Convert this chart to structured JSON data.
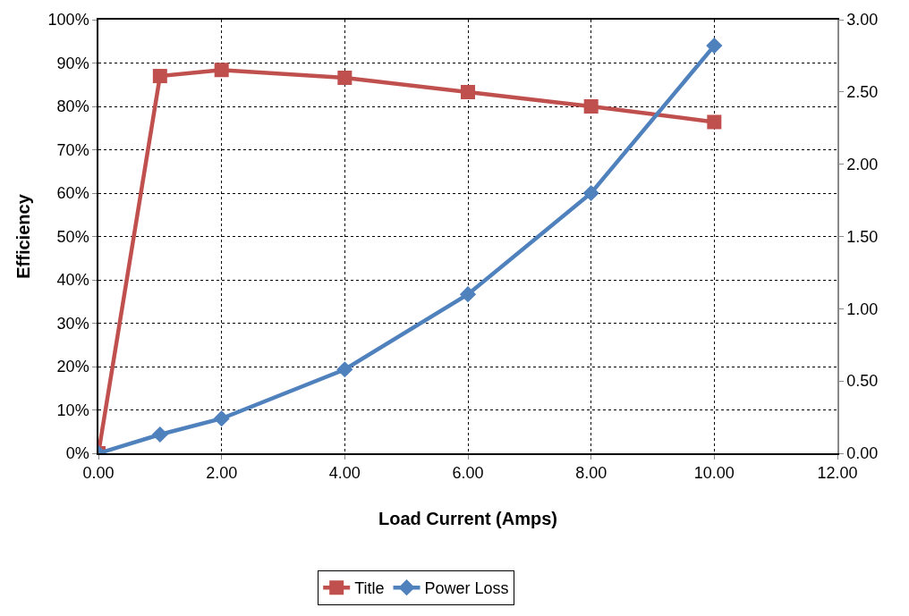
{
  "chart_data": {
    "type": "line",
    "xlabel": "Load Current (Amps)",
    "ylabel": "Efficiency",
    "x": [
      0,
      1,
      2,
      4,
      6,
      8,
      10
    ],
    "series": [
      {
        "name": "Title",
        "color": "#c0504d",
        "marker": "square",
        "values": [
          0,
          87,
          88.4,
          86.6,
          83.3,
          80,
          76.4
        ]
      },
      {
        "name": "Power Loss",
        "color": "#4f81bd",
        "marker": "diamond",
        "axis": "y2",
        "values": [
          0,
          0.13,
          0.24,
          0.58,
          1.1,
          1.8,
          2.82
        ]
      }
    ],
    "xlim": [
      0,
      12
    ],
    "xticks": [
      {
        "value": 0,
        "label": "0.00"
      },
      {
        "value": 2,
        "label": "2.00"
      },
      {
        "value": 4,
        "label": "4.00"
      },
      {
        "value": 6,
        "label": "6.00"
      },
      {
        "value": 8,
        "label": "8.00"
      },
      {
        "value": 10,
        "label": "10.00"
      },
      {
        "value": 12,
        "label": "12.00"
      }
    ],
    "ylim": [
      0,
      100
    ],
    "yticks": [
      {
        "value": 0,
        "label": "0%"
      },
      {
        "value": 10,
        "label": "10%"
      },
      {
        "value": 20,
        "label": "20%"
      },
      {
        "value": 30,
        "label": "30%"
      },
      {
        "value": 40,
        "label": "40%"
      },
      {
        "value": 50,
        "label": "50%"
      },
      {
        "value": 60,
        "label": "60%"
      },
      {
        "value": 70,
        "label": "70%"
      },
      {
        "value": 80,
        "label": "80%"
      },
      {
        "value": 90,
        "label": "90%"
      },
      {
        "value": 100,
        "label": "100%"
      }
    ],
    "y2lim": [
      0,
      3
    ],
    "y2ticks": [
      {
        "value": 0,
        "label": "0.00"
      },
      {
        "value": 0.5,
        "label": "0.50"
      },
      {
        "value": 1,
        "label": "1.00"
      },
      {
        "value": 1.5,
        "label": "1.50"
      },
      {
        "value": 2,
        "label": "2.00"
      },
      {
        "value": 2.5,
        "label": "2.50"
      },
      {
        "value": 3,
        "label": "3.00"
      }
    ],
    "grid": true,
    "legend": "bottom"
  }
}
